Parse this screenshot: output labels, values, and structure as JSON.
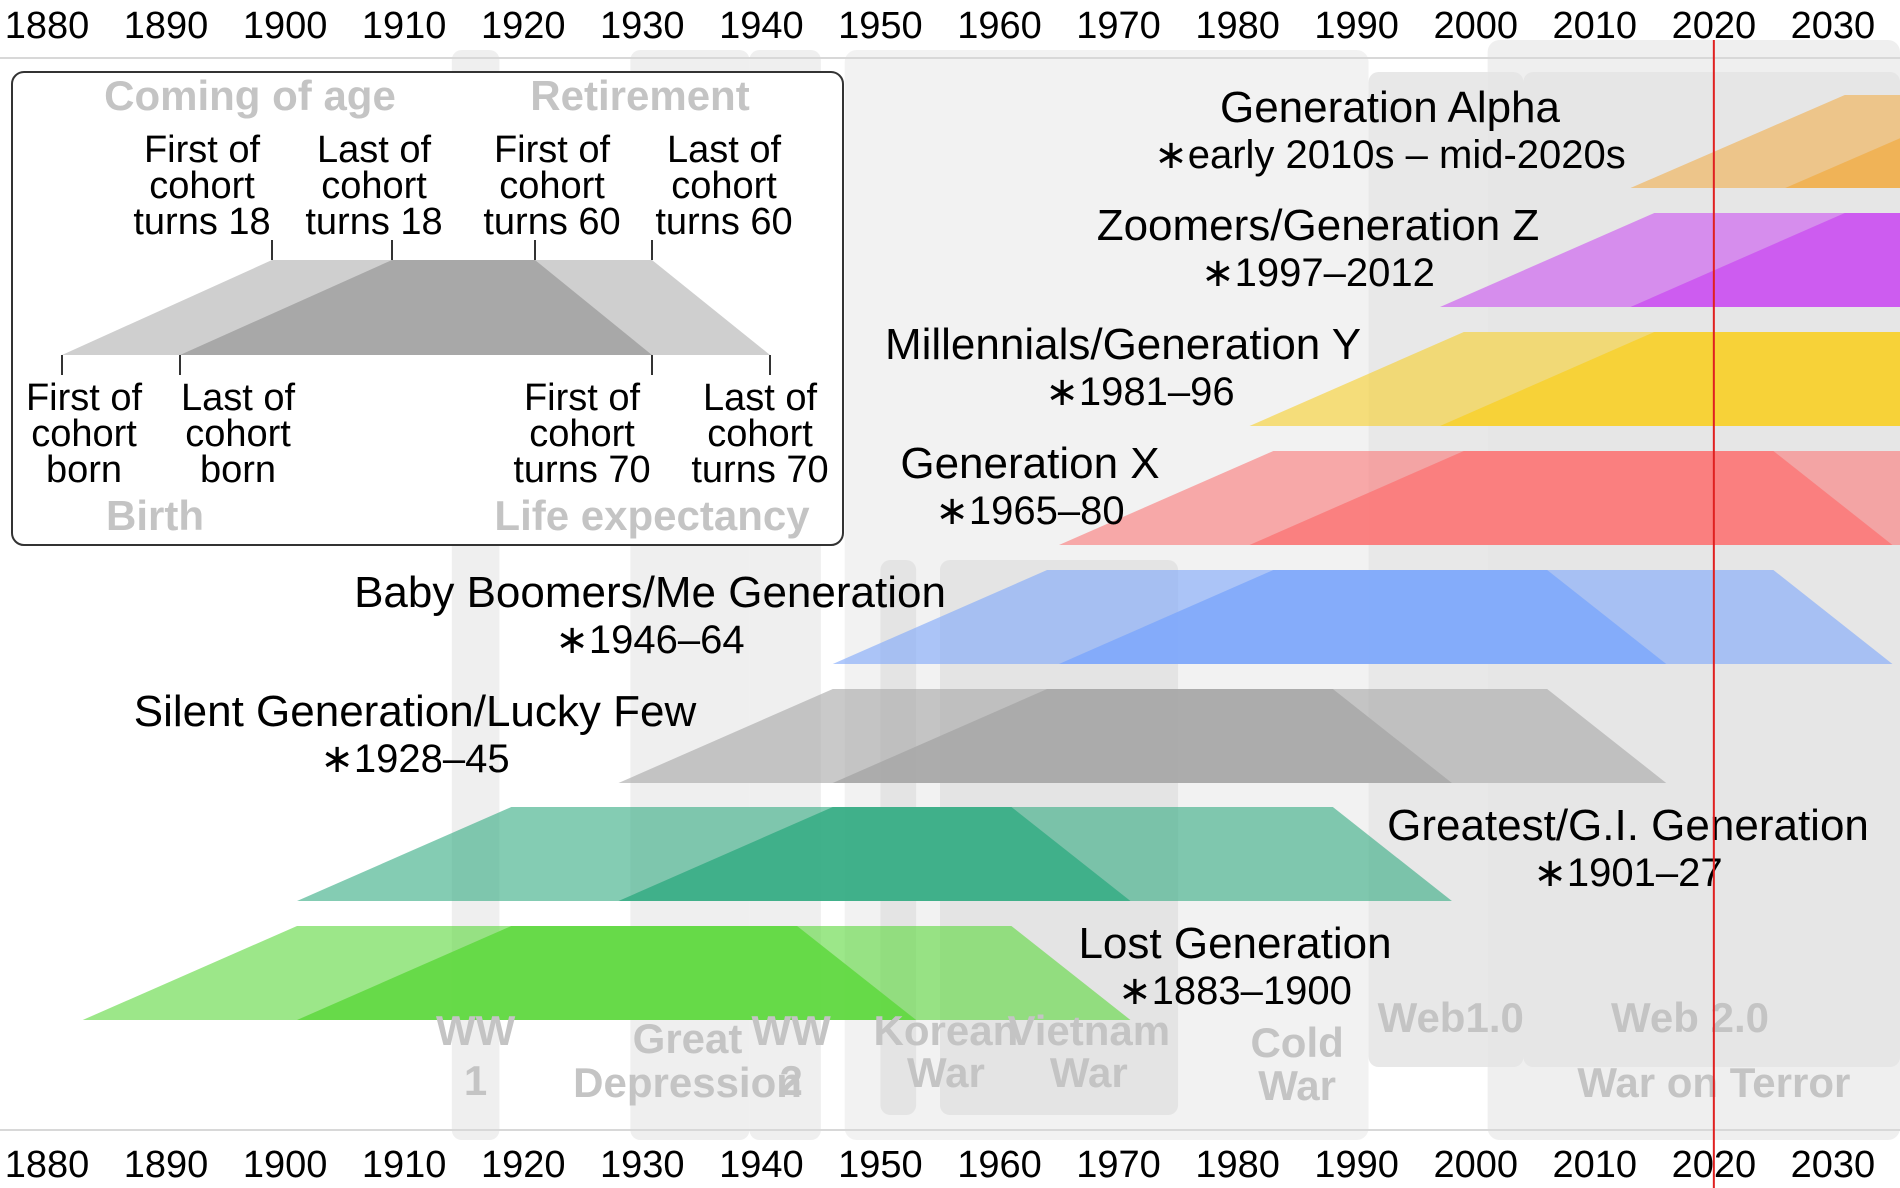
{
  "axis": {
    "years": [
      "1880",
      "1890",
      "1900",
      "1910",
      "1920",
      "1930",
      "1940",
      "1950",
      "1960",
      "1970",
      "1980",
      "1990",
      "2000",
      "2010",
      "2020",
      "2030"
    ],
    "current_year_marker": 2020
  },
  "events": [
    {
      "id": "ww1",
      "start": 1914,
      "end": 1918,
      "lines": [
        "WW",
        "1"
      ]
    },
    {
      "id": "great-depression",
      "start": 1929,
      "end": 1939,
      "lines": [
        "Great",
        "Depression"
      ]
    },
    {
      "id": "ww2",
      "start": 1939,
      "end": 1945,
      "lines": [
        "WW",
        "2"
      ]
    },
    {
      "id": "korean-war",
      "start": 1950,
      "end": 1953,
      "lines": [
        "Korean",
        "War"
      ]
    },
    {
      "id": "vietnam-war",
      "start": 1955,
      "end": 1975,
      "lines": [
        "Vietnam",
        "War"
      ]
    },
    {
      "id": "cold-war",
      "start": 1947,
      "end": 1991,
      "lines": [
        "Cold",
        "War"
      ]
    },
    {
      "id": "web1",
      "start": 1991,
      "end": 2004,
      "lines": [
        "Web1.0"
      ]
    },
    {
      "id": "web2",
      "start": 2004,
      "end": 2036,
      "lines": [
        "Web 2.0"
      ]
    },
    {
      "id": "war-on-terror",
      "start": 2001,
      "end": 2036,
      "lines": [
        "War on Terror"
      ]
    }
  ],
  "generations": [
    {
      "id": "generation-alpha",
      "name": "Generation Alpha",
      "years": "∗early 2010s – mid-2020s",
      "birth_start": 2013,
      "birth_end": 2025,
      "color": "#f0b050"
    },
    {
      "id": "generation-z",
      "name": "Zoomers/Generation Z",
      "years": "∗1997–2012",
      "birth_start": 1997,
      "birth_end": 2012,
      "color": "#cc55f0"
    },
    {
      "id": "millennials",
      "name": "Millennials/Generation Y",
      "years": "∗1981–96",
      "birth_start": 1981,
      "birth_end": 1996,
      "color": "#f7d030"
    },
    {
      "id": "generation-x",
      "name": "Generation X",
      "years": "∗1965–80",
      "birth_start": 1965,
      "birth_end": 1980,
      "color": "#fa7a7a"
    },
    {
      "id": "baby-boomers",
      "name": "Baby Boomers/Me Generation",
      "years": "∗1946–64",
      "birth_start": 1946,
      "birth_end": 1964,
      "color": "#80a8fa"
    },
    {
      "id": "silent-generation",
      "name": "Silent Generation/Lucky Few",
      "years": "∗1928–45",
      "birth_start": 1928,
      "birth_end": 1945,
      "color": "#a8a8a8"
    },
    {
      "id": "greatest-generation",
      "name": "Greatest/G.I. Generation",
      "years": "∗1901–27",
      "birth_start": 1901,
      "birth_end": 1927,
      "color": "#38ad85"
    },
    {
      "id": "lost-generation",
      "name": "Lost Generation",
      "years": "∗1883–1900",
      "birth_start": 1883,
      "birth_end": 1900,
      "color": "#60d840"
    }
  ],
  "legend": {
    "coming_of_age": "Coming of age",
    "retirement": "Retirement",
    "birth": "Birth",
    "life_expectancy": "Life expectancy",
    "top_labels": [
      [
        "First of",
        "cohort",
        "turns 18"
      ],
      [
        "Last of",
        "cohort",
        "turns 18"
      ],
      [
        "First of",
        "cohort",
        "turns 60"
      ],
      [
        "Last of",
        "cohort",
        "turns 60"
      ]
    ],
    "bottom_labels": [
      [
        "First of",
        "cohort",
        "born"
      ],
      [
        "Last of",
        "cohort",
        "born"
      ],
      [
        "First of",
        "cohort",
        "turns 70"
      ],
      [
        "Last of",
        "cohort",
        "turns 70"
      ]
    ]
  }
}
